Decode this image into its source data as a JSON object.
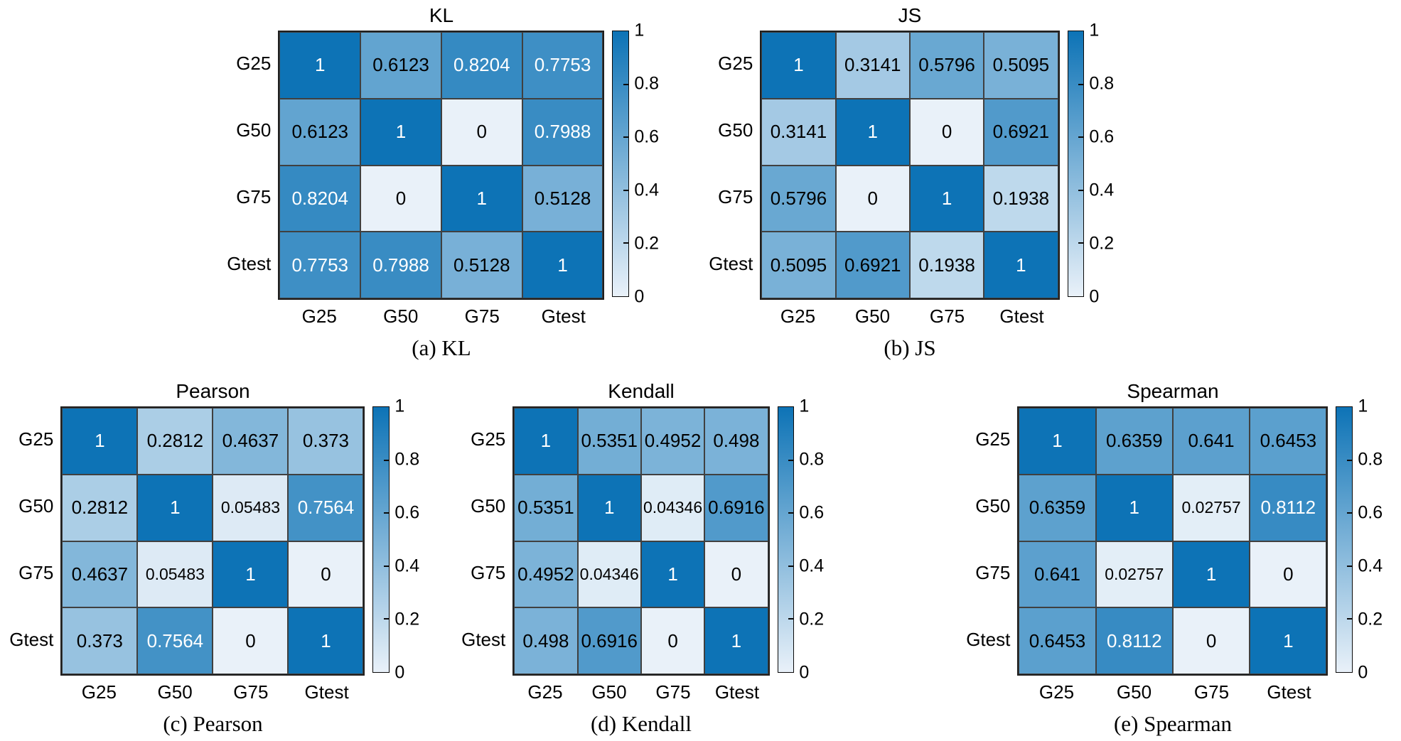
{
  "figure": {
    "background": "#ffffff"
  },
  "colors": {
    "colormap_high": "#0d73b6",
    "colormap_low": "#e9f1f9",
    "grid_line": "#404040",
    "outer_border": "#1f1f1f",
    "text_on_dark": "#ffffff",
    "text_on_light": "#000000"
  },
  "colorbar": {
    "tick_labels": [
      "1",
      "0.8",
      "0.6",
      "0.4",
      "0.2",
      "0"
    ],
    "min": 0,
    "max": 1
  },
  "chart_data": [
    {
      "type": "heatmap",
      "title": "KL",
      "caption": "(a) KL",
      "x_categories": [
        "G25",
        "G50",
        "G75",
        "Gtest"
      ],
      "y_categories": [
        "G25",
        "G50",
        "G75",
        "Gtest"
      ],
      "value_range": [
        0,
        1
      ],
      "matrix": [
        [
          "1",
          "0.6123",
          "0.8204",
          "0.7753"
        ],
        [
          "0.6123",
          "1",
          "0",
          "0.7988"
        ],
        [
          "0.8204",
          "0",
          "1",
          "0.5128"
        ],
        [
          "0.7753",
          "0.7988",
          "0.5128",
          "1"
        ]
      ]
    },
    {
      "type": "heatmap",
      "title": "JS",
      "caption": "(b) JS",
      "x_categories": [
        "G25",
        "G50",
        "G75",
        "Gtest"
      ],
      "y_categories": [
        "G25",
        "G50",
        "G75",
        "Gtest"
      ],
      "value_range": [
        0,
        1
      ],
      "matrix": [
        [
          "1",
          "0.3141",
          "0.5796",
          "0.5095"
        ],
        [
          "0.3141",
          "1",
          "0",
          "0.6921"
        ],
        [
          "0.5796",
          "0",
          "1",
          "0.1938"
        ],
        [
          "0.5095",
          "0.6921",
          "0.1938",
          "1"
        ]
      ]
    },
    {
      "type": "heatmap",
      "title": "Pearson",
      "caption": "(c) Pearson",
      "x_categories": [
        "G25",
        "G50",
        "G75",
        "Gtest"
      ],
      "y_categories": [
        "G25",
        "G50",
        "G75",
        "Gtest"
      ],
      "value_range": [
        0,
        1
      ],
      "matrix": [
        [
          "1",
          "0.2812",
          "0.4637",
          "0.373"
        ],
        [
          "0.2812",
          "1",
          "0.05483",
          "0.7564"
        ],
        [
          "0.4637",
          "0.05483",
          "1",
          "0"
        ],
        [
          "0.373",
          "0.7564",
          "0",
          "1"
        ]
      ]
    },
    {
      "type": "heatmap",
      "title": "Kendall",
      "caption": "(d) Kendall",
      "x_categories": [
        "G25",
        "G50",
        "G75",
        "Gtest"
      ],
      "y_categories": [
        "G25",
        "G50",
        "G75",
        "Gtest"
      ],
      "value_range": [
        0,
        1
      ],
      "matrix": [
        [
          "1",
          "0.5351",
          "0.4952",
          "0.498"
        ],
        [
          "0.5351",
          "1",
          "0.04346",
          "0.6916"
        ],
        [
          "0.4952",
          "0.04346",
          "1",
          "0"
        ],
        [
          "0.498",
          "0.6916",
          "0",
          "1"
        ]
      ]
    },
    {
      "type": "heatmap",
      "title": "Spearman",
      "caption": "(e) Spearman",
      "x_categories": [
        "G25",
        "G50",
        "G75",
        "Gtest"
      ],
      "y_categories": [
        "G25",
        "G50",
        "G75",
        "Gtest"
      ],
      "value_range": [
        0,
        1
      ],
      "matrix": [
        [
          "1",
          "0.6359",
          "0.641",
          "0.6453"
        ],
        [
          "0.6359",
          "1",
          "0.02757",
          "0.8112"
        ],
        [
          "0.641",
          "0.02757",
          "1",
          "0"
        ],
        [
          "0.6453",
          "0.8112",
          "0",
          "1"
        ]
      ]
    }
  ]
}
